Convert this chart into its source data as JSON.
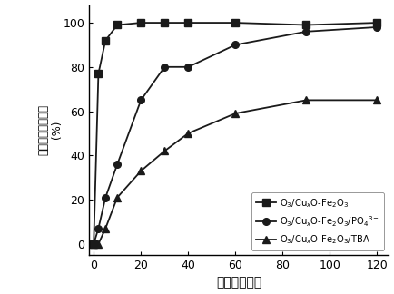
{
  "series1": {
    "x": [
      0,
      2,
      5,
      10,
      20,
      30,
      40,
      60,
      90,
      120
    ],
    "y": [
      0,
      77,
      92,
      99,
      100,
      100,
      100,
      100,
      99,
      100
    ],
    "marker": "s",
    "label": "O$_3$/Cu$_x$O-Fe$_2$O$_3$"
  },
  "series2": {
    "x": [
      0,
      2,
      5,
      10,
      20,
      30,
      40,
      60,
      90,
      120
    ],
    "y": [
      0,
      7,
      21,
      36,
      65,
      80,
      80,
      90,
      96,
      98
    ],
    "marker": "o",
    "label": "O$_3$/Cu$_x$O-Fe$_2$O$_3$/PO$_4$$^{3-}$"
  },
  "series3": {
    "x": [
      0,
      2,
      5,
      10,
      20,
      30,
      40,
      60,
      90,
      120
    ],
    "y": [
      0,
      0,
      7,
      21,
      33,
      42,
      50,
      59,
      65,
      65
    ],
    "marker": "^",
    "label": "O$_3$/Cu$_x$O-Fe$_2$O$_3$/TBA"
  },
  "xlabel": "时间（分钟）",
  "ylabel_line1": "邻苯二甲酸二甲酸",
  "ylabel_paren": "(%)",
  "xlim": [
    -2,
    125
  ],
  "ylim": [
    -5,
    108
  ],
  "xticks": [
    0,
    20,
    40,
    60,
    80,
    100,
    120
  ],
  "yticks": [
    0,
    20,
    40,
    60,
    80,
    100
  ],
  "color": "#1a1a1a",
  "linewidth": 1.3,
  "markersize": 5.5
}
